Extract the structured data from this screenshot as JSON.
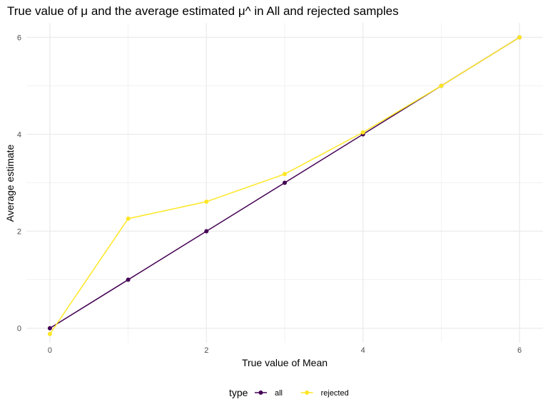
{
  "chart_data": {
    "type": "line",
    "title": "True value of μ and the average estimated μ^ in All and rejected samples",
    "xlabel": "True value of Mean",
    "ylabel": "Average estimate",
    "x": [
      0,
      1,
      2,
      3,
      4,
      5,
      6
    ],
    "xlim": [
      -0.3,
      6.3
    ],
    "ylim": [
      -0.3,
      6.3
    ],
    "xticks": [
      0,
      2,
      4,
      6
    ],
    "yticks": [
      0,
      2,
      4,
      6
    ],
    "grid": true,
    "legend_position": "bottom",
    "legend_title": "type",
    "series": [
      {
        "name": "all",
        "color": "#440154",
        "values": [
          0.0,
          1.0,
          2.0,
          3.0,
          4.0,
          5.0,
          6.0
        ]
      },
      {
        "name": "rejected",
        "color": "#FDE725",
        "values": [
          -0.12,
          2.26,
          2.61,
          3.18,
          4.04,
          5.0,
          6.0
        ]
      }
    ]
  }
}
